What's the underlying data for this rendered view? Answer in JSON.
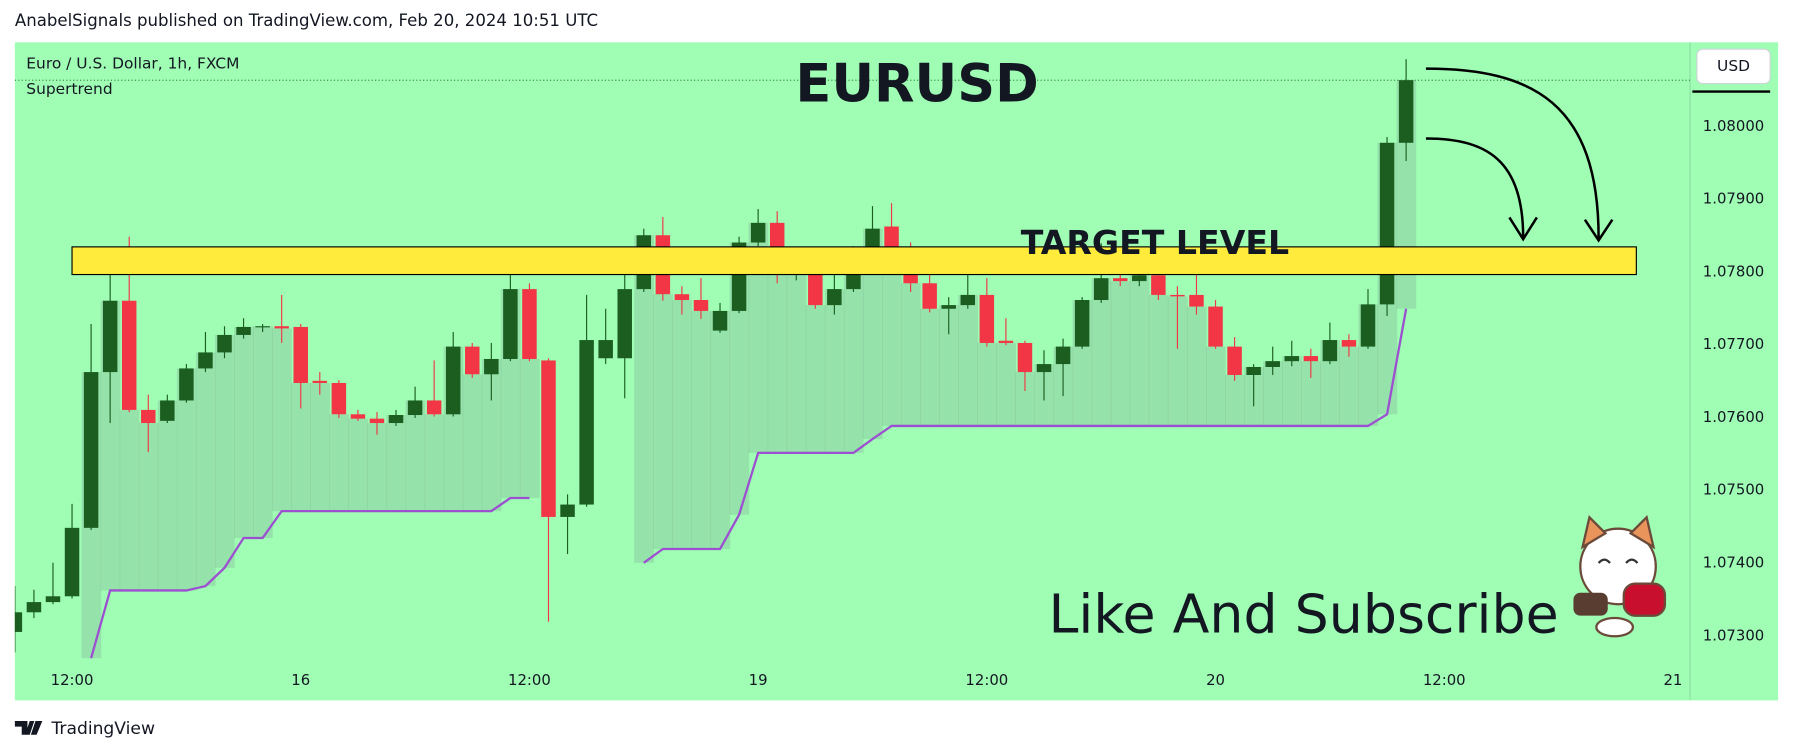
{
  "header": {
    "text": "AnabelSignals published on TradingView.com, Feb 20, 2024 10:51 UTC"
  },
  "footer": {
    "brand": "TradingView"
  },
  "chart_data": {
    "type": "candlestick",
    "title": "Euro / U.S. Dollar, 1h, FXCM",
    "currency": "USD",
    "annotations": {
      "headline": "EURUSD",
      "call_to_action": "Like And Subscribe"
    },
    "target_zone": {
      "label": "TARGET LEVEL",
      "low": 1.07797,
      "high": 1.07835,
      "color": "#ffeb3b"
    },
    "up_color": "#1b5e20",
    "down_color": "#f23645",
    "categories": [
      null,
      null,
      null,
      "12:00",
      null,
      null,
      null,
      null,
      null,
      null,
      null,
      null,
      null,
      null,
      null,
      "16",
      null,
      null,
      null,
      null,
      null,
      null,
      null,
      null,
      null,
      null,
      null,
      "12:00",
      null,
      null,
      null,
      null,
      null,
      null,
      null,
      null,
      null,
      null,
      null,
      "19",
      null,
      null,
      null,
      null,
      null,
      null,
      null,
      null,
      null,
      null,
      null,
      "12:00",
      null,
      null,
      null,
      null,
      null,
      null,
      null,
      null,
      null,
      null,
      null,
      "20",
      null,
      null,
      null,
      null,
      null,
      null,
      null,
      null,
      null,
      null,
      null,
      "12:00",
      null,
      null,
      null,
      null,
      null,
      null,
      null,
      null,
      null,
      null,
      null,
      "21"
    ],
    "open": [
      1.07306,
      1.07333,
      1.07347,
      1.07355,
      1.07449,
      1.07663,
      1.07761,
      1.07611,
      1.07596,
      1.07624,
      1.07668,
      1.0769,
      1.07714,
      1.07725,
      1.07726,
      1.07725,
      1.07651,
      1.07648,
      1.07605,
      1.07599,
      1.07593,
      1.07604,
      1.07624,
      1.07605,
      1.07698,
      1.0766,
      1.07681,
      1.07777,
      1.07679,
      1.07464,
      1.07481,
      1.07682,
      1.07682,
      1.07777,
      1.07851,
      1.0777,
      1.07762,
      1.0772,
      1.07747,
      1.07841,
      1.07868,
      1.07805,
      1.0781,
      1.07755,
      1.07777,
      1.07818,
      1.07863,
      1.07829,
      1.07785,
      1.0775,
      1.07755,
      1.07769,
      1.07706,
      1.07703,
      1.07663,
      1.07674,
      1.07698,
      1.07762,
      1.07792,
      1.07788,
      1.07796,
      1.07769,
      1.07769,
      1.07753,
      1.07698,
      1.07659,
      1.0767,
      1.07678,
      1.07685,
      1.07678,
      1.07707,
      1.07698,
      1.07756,
      1.07978,
      null,
      null,
      null,
      null,
      null,
      null,
      null,
      null,
      null,
      null,
      null,
      null,
      null,
      null
    ],
    "high": [
      1.07369,
      1.07364,
      1.07401,
      1.07482,
      1.07729,
      1.07832,
      1.07849,
      1.07632,
      1.07632,
      1.07674,
      1.07718,
      1.07726,
      1.07737,
      1.07729,
      1.07769,
      1.07729,
      1.07663,
      1.07652,
      1.07611,
      1.07608,
      1.07611,
      1.07643,
      1.07679,
      1.07718,
      1.07703,
      1.07703,
      1.07797,
      1.07785,
      1.07682,
      1.07495,
      1.07769,
      1.0775,
      1.07797,
      1.0786,
      1.07876,
      1.07781,
      1.07792,
      1.07758,
      1.07849,
      1.07887,
      1.07884,
      1.07829,
      1.07821,
      1.07797,
      1.07836,
      1.07891,
      1.07895,
      1.07841,
      1.07832,
      1.07766,
      1.07816,
      1.07792,
      1.07737,
      1.07706,
      1.07693,
      1.07709,
      1.07766,
      1.0784,
      1.07821,
      1.078,
      1.07825,
      1.07781,
      1.07797,
      1.07762,
      1.07711,
      1.07674,
      1.07698,
      1.07706,
      1.07695,
      1.07731,
      1.07715,
      1.07777,
      1.07986,
      1.08093,
      null,
      null,
      null,
      null,
      null,
      null,
      null,
      null,
      null,
      null,
      null,
      null,
      null,
      null
    ],
    "low": [
      1.07278,
      1.07325,
      1.07344,
      1.07352,
      1.07446,
      1.07593,
      1.07608,
      1.07553,
      1.07593,
      1.07621,
      1.07663,
      1.07682,
      1.07709,
      1.07718,
      1.07703,
      1.07613,
      1.07632,
      1.076,
      1.07596,
      1.07577,
      1.07589,
      1.076,
      1.07602,
      1.07602,
      1.07655,
      1.07624,
      1.07678,
      1.07678,
      1.0732,
      1.07413,
      1.07478,
      1.07674,
      1.07627,
      1.07773,
      1.07761,
      1.07742,
      1.07736,
      1.07717,
      1.07744,
      1.07836,
      1.07785,
      1.07789,
      1.0775,
      1.07742,
      1.07773,
      1.07813,
      1.07821,
      1.07773,
      1.07745,
      1.07715,
      1.0775,
      1.07698,
      1.077,
      1.07637,
      1.07624,
      1.0763,
      1.07695,
      1.07758,
      1.07781,
      1.07781,
      1.07762,
      1.07695,
      1.07742,
      1.07695,
      1.07651,
      1.07616,
      1.07659,
      1.07671,
      1.07655,
      1.07674,
      1.07684,
      1.07695,
      1.0774,
      1.07953,
      null,
      null,
      null,
      null,
      null,
      null,
      null,
      null,
      null,
      null,
      null,
      null,
      null,
      null
    ],
    "close": [
      1.07333,
      1.07347,
      1.07355,
      1.07449,
      1.07663,
      1.07761,
      1.07611,
      1.07593,
      1.07624,
      1.07668,
      1.0769,
      1.07714,
      1.07725,
      1.07726,
      1.07723,
      1.07648,
      1.07648,
      1.07605,
      1.07599,
      1.07593,
      1.07604,
      1.07624,
      1.07605,
      1.07698,
      1.0766,
      1.07681,
      1.07777,
      1.07681,
      1.07464,
      1.07481,
      1.07707,
      1.07707,
      1.07777,
      1.07851,
      1.0777,
      1.07762,
      1.07747,
      1.07747,
      1.07841,
      1.07868,
      1.07805,
      1.0781,
      1.07755,
      1.07777,
      1.07818,
      1.0786,
      1.07829,
      1.07785,
      1.0775,
      1.07755,
      1.07769,
      1.07703,
      1.07703,
      1.07663,
      1.07674,
      1.07698,
      1.07762,
      1.07792,
      1.07788,
      1.07796,
      1.07769,
      1.07767,
      1.07753,
      1.07698,
      1.07659,
      1.0767,
      1.07678,
      1.07685,
      1.07678,
      1.07707,
      1.07698,
      1.07756,
      1.07978,
      1.08064,
      null,
      null,
      null,
      null,
      null,
      null,
      null,
      null,
      null,
      null,
      null,
      null,
      null,
      null
    ],
    "indicator": {
      "name": "Supertrend",
      "color": "#9c4fd0",
      "values": [
        null,
        null,
        null,
        null,
        1.0727,
        1.07363,
        1.07363,
        1.07363,
        1.07363,
        1.07363,
        1.07369,
        1.07394,
        1.07435,
        1.07435,
        1.07472,
        1.07472,
        1.07472,
        1.07472,
        1.07472,
        1.07472,
        1.07472,
        1.07472,
        1.07472,
        1.07472,
        1.07472,
        1.07472,
        1.0749,
        1.0749,
        null,
        null,
        null,
        null,
        null,
        1.07401,
        1.0742,
        1.0742,
        1.0742,
        1.0742,
        1.07467,
        1.07552,
        1.07552,
        1.07552,
        1.07552,
        1.07552,
        1.07552,
        1.07571,
        1.07589,
        1.07589,
        1.07589,
        1.07589,
        1.07589,
        1.07589,
        1.07589,
        1.07589,
        1.07589,
        1.07589,
        1.07589,
        1.07589,
        1.07589,
        1.07589,
        1.07589,
        1.07589,
        1.07589,
        1.07589,
        1.07589,
        1.07589,
        1.07589,
        1.07589,
        1.07589,
        1.07589,
        1.07589,
        1.07589,
        1.07605,
        1.0775,
        null,
        null,
        null,
        null,
        null,
        null,
        null,
        null,
        null,
        null,
        null,
        null,
        null,
        null
      ]
    },
    "ylim": [
      1.07212,
      1.08116
    ],
    "yticks": [
      {
        "value": 1.073,
        "label": "1.07300"
      },
      {
        "value": 1.074,
        "label": "1.07400"
      },
      {
        "value": 1.075,
        "label": "1.07500"
      },
      {
        "value": 1.076,
        "label": "1.07600"
      },
      {
        "value": 1.077,
        "label": "1.07700"
      },
      {
        "value": 1.078,
        "label": "1.07800"
      },
      {
        "value": 1.079,
        "label": "1.07900"
      },
      {
        "value": 1.08,
        "label": "1.08000"
      }
    ],
    "grid": false
  }
}
